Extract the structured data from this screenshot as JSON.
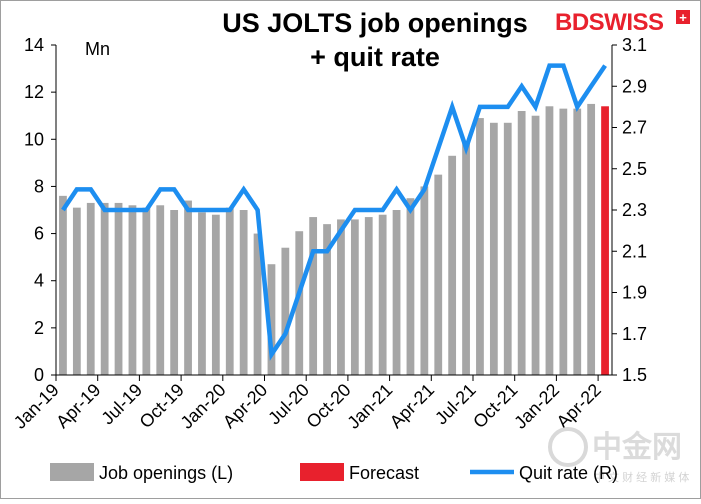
{
  "chart_data": {
    "type": "bar+line",
    "title_line1": "US JOLTS job openings",
    "title_line2": "+ quit rate",
    "left_unit": "Mn",
    "brand": "BDSWISS",
    "watermark_cn": "中金网",
    "watermark_sub": "中 文 财 经 新 媒 体",
    "left_axis": {
      "min": 0,
      "max": 14,
      "step": 2,
      "ticks": [
        "0",
        "2",
        "4",
        "6",
        "8",
        "10",
        "12",
        "14"
      ]
    },
    "right_axis": {
      "min": 1.5,
      "max": 3.1,
      "ticks": [
        "1.5",
        "1.7",
        "1.9",
        "2.1",
        "2.3",
        "2.5",
        "2.7",
        "2.9",
        "3.1"
      ]
    },
    "x_tick_labels": [
      "Jan-19",
      "Apr-19",
      "Jul-19",
      "Oct-19",
      "Jan-20",
      "Apr-20",
      "Jul-20",
      "Oct-20",
      "Jan-21",
      "Apr-21",
      "Jul-21",
      "Oct-21",
      "Jan-22",
      "Apr-22"
    ],
    "months": [
      "Jan-19",
      "Feb-19",
      "Mar-19",
      "Apr-19",
      "May-19",
      "Jun-19",
      "Jul-19",
      "Aug-19",
      "Sep-19",
      "Oct-19",
      "Nov-19",
      "Dec-19",
      "Jan-20",
      "Feb-20",
      "Mar-20",
      "Apr-20",
      "May-20",
      "Jun-20",
      "Jul-20",
      "Aug-20",
      "Sep-20",
      "Oct-20",
      "Nov-20",
      "Dec-20",
      "Jan-21",
      "Feb-21",
      "Mar-21",
      "Apr-21",
      "May-21",
      "Jun-21",
      "Jul-21",
      "Aug-21",
      "Sep-21",
      "Oct-21",
      "Nov-21",
      "Dec-21",
      "Jan-22",
      "Feb-22",
      "Mar-22",
      "Apr-22"
    ],
    "series": [
      {
        "name": "Job openings (L)",
        "kind": "bar",
        "color": "#a6a6a6",
        "values": [
          7.6,
          7.1,
          7.3,
          7.3,
          7.3,
          7.2,
          7.1,
          7.2,
          7.0,
          7.4,
          6.9,
          6.8,
          7.1,
          7.0,
          6.0,
          4.7,
          5.4,
          6.1,
          6.7,
          6.4,
          6.6,
          6.6,
          6.7,
          6.8,
          7.0,
          7.5,
          8.0,
          8.5,
          9.3,
          9.9,
          10.9,
          10.7,
          10.7,
          11.2,
          11.0,
          11.4,
          11.3,
          11.3,
          11.5,
          null
        ]
      },
      {
        "name": "Forecast",
        "kind": "bar",
        "color": "#e8212d",
        "values": [
          null,
          null,
          null,
          null,
          null,
          null,
          null,
          null,
          null,
          null,
          null,
          null,
          null,
          null,
          null,
          null,
          null,
          null,
          null,
          null,
          null,
          null,
          null,
          null,
          null,
          null,
          null,
          null,
          null,
          null,
          null,
          null,
          null,
          null,
          null,
          null,
          null,
          null,
          null,
          11.4
        ]
      },
      {
        "name": "Quit rate (R)",
        "kind": "line",
        "color": "#1d8ef0",
        "values": [
          2.3,
          2.4,
          2.4,
          2.3,
          2.3,
          2.3,
          2.3,
          2.4,
          2.4,
          2.3,
          2.3,
          2.3,
          2.3,
          2.4,
          2.3,
          1.6,
          1.7,
          1.9,
          2.1,
          2.1,
          2.2,
          2.3,
          2.3,
          2.3,
          2.4,
          2.3,
          2.4,
          2.6,
          2.8,
          2.6,
          2.8,
          2.8,
          2.8,
          2.9,
          2.8,
          3.0,
          3.0,
          2.8,
          2.9,
          3.0
        ]
      }
    ],
    "legend_position": "bottom",
    "grid": false
  }
}
